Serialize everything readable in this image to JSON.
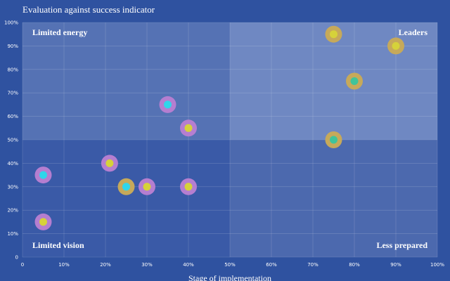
{
  "colors": {
    "background": "#2f52a0",
    "quad_limited_energy": "#5572b4",
    "quad_leaders": "#6f88c2",
    "quad_limited_vision": "#3a5aa7",
    "quad_less_prepared": "#4c69ae",
    "ring_purple": "#b57ed0",
    "ring_gold": "#c6a95a",
    "dot_cyan": "#2fd6ea",
    "dot_yellow": "#d6d23a",
    "dot_green": "#3fc49a"
  },
  "chart_data": {
    "type": "scatter",
    "title": "Evaluation against success indicator",
    "xlabel": "Stage of implementation",
    "ylabel": "",
    "xlim": [
      0,
      100
    ],
    "ylim": [
      0,
      100
    ],
    "x_ticks": [
      "0",
      "10%",
      "20%",
      "30%",
      "40%",
      "50%",
      "60%",
      "70%",
      "80%",
      "90%",
      "100%"
    ],
    "y_ticks": [
      "0",
      "10%",
      "20%",
      "30%",
      "40%",
      "50%",
      "60%",
      "70%",
      "80%",
      "90%",
      "100%"
    ],
    "quadrants": {
      "top_left": "Limited energy",
      "top_right": "Leaders",
      "bottom_left": "Limited vision",
      "bottom_right": "Less prepared"
    },
    "points": [
      {
        "x": 5,
        "y": 35,
        "ring": "ring_purple",
        "dot": "dot_cyan"
      },
      {
        "x": 5,
        "y": 15,
        "ring": "ring_purple",
        "dot": "dot_yellow"
      },
      {
        "x": 21,
        "y": 40,
        "ring": "ring_purple",
        "dot": "dot_yellow"
      },
      {
        "x": 25,
        "y": 30,
        "ring": "ring_gold",
        "dot": "dot_cyan"
      },
      {
        "x": 30,
        "y": 30,
        "ring": "ring_purple",
        "dot": "dot_yellow"
      },
      {
        "x": 35,
        "y": 65,
        "ring": "ring_purple",
        "dot": "dot_cyan"
      },
      {
        "x": 40,
        "y": 55,
        "ring": "ring_purple",
        "dot": "dot_yellow"
      },
      {
        "x": 40,
        "y": 30,
        "ring": "ring_purple",
        "dot": "dot_yellow"
      },
      {
        "x": 75,
        "y": 95,
        "ring": "ring_gold",
        "dot": "dot_yellow"
      },
      {
        "x": 90,
        "y": 90,
        "ring": "ring_gold",
        "dot": "dot_yellow"
      },
      {
        "x": 80,
        "y": 75,
        "ring": "ring_gold",
        "dot": "dot_green"
      },
      {
        "x": 75,
        "y": 50,
        "ring": "ring_gold",
        "dot": "dot_green"
      }
    ]
  }
}
